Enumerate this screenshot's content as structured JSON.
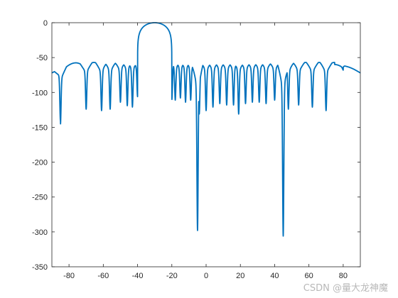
{
  "watermark": "CSDN @量大龙神魔",
  "colors": {
    "line": "#0072BD",
    "axes": "#262626",
    "background": "#ffffff"
  },
  "chart_data": {
    "type": "line",
    "title": "",
    "xlabel": "",
    "ylabel": "",
    "xlim": [
      -90,
      90
    ],
    "ylim": [
      -350,
      0
    ],
    "grid": false,
    "xticks": [
      -80,
      -60,
      -40,
      -20,
      0,
      20,
      40,
      60,
      80
    ],
    "yticks": [
      0,
      -50,
      -100,
      -150,
      -200,
      -250,
      -300,
      -350
    ],
    "xtick_labels": [
      "-80",
      "-60",
      "-40",
      "-20",
      "0",
      "20",
      "40",
      "60",
      "80"
    ],
    "ytick_labels": [
      "0",
      "-50",
      "-100",
      "-150",
      "-200",
      "-250",
      "-300",
      "-350"
    ],
    "main_lobe": {
      "center": -30,
      "half_width": 10,
      "peak": 0
    },
    "sidelobe_level": -57,
    "edge_level": -72,
    "nulls": [
      {
        "x": -85,
        "y": -140
      },
      {
        "x": -70,
        "y": -118
      },
      {
        "x": -61,
        "y": -120
      },
      {
        "x": -56,
        "y": -118
      },
      {
        "x": -50,
        "y": -108
      },
      {
        "x": -46,
        "y": -113
      },
      {
        "x": -43,
        "y": -115
      },
      {
        "x": -40,
        "y": -100
      },
      {
        "x": -20,
        "y": -105
      },
      {
        "x": -18,
        "y": -105
      },
      {
        "x": -15,
        "y": -102
      },
      {
        "x": -12,
        "y": -108
      },
      {
        "x": -9,
        "y": -105
      },
      {
        "x": -5,
        "y": -292
      },
      {
        "x": -4,
        "y": -125
      },
      {
        "x": 0,
        "y": -120
      },
      {
        "x": 4,
        "y": -115
      },
      {
        "x": 8,
        "y": -110
      },
      {
        "x": 12,
        "y": -112
      },
      {
        "x": 16,
        "y": -112
      },
      {
        "x": 19,
        "y": -125
      },
      {
        "x": 23,
        "y": -110
      },
      {
        "x": 27,
        "y": -108
      },
      {
        "x": 31,
        "y": -108
      },
      {
        "x": 35,
        "y": -110
      },
      {
        "x": 40,
        "y": -105
      },
      {
        "x": 45,
        "y": -300
      },
      {
        "x": 48,
        "y": -118
      },
      {
        "x": 54,
        "y": -112
      },
      {
        "x": 62,
        "y": -115
      },
      {
        "x": 70,
        "y": -120
      },
      {
        "x": 80,
        "y": -62
      }
    ]
  }
}
